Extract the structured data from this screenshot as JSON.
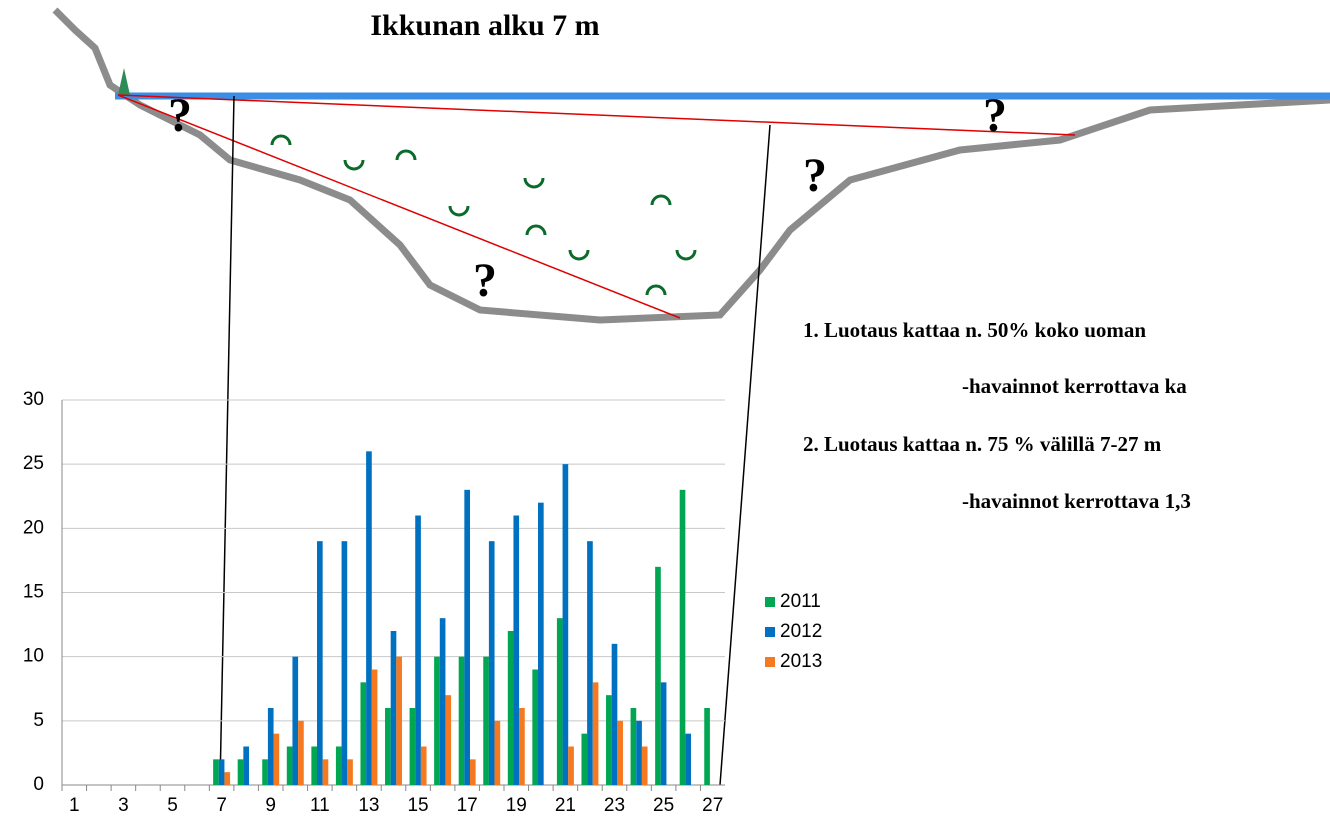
{
  "diagram": {
    "title": "Ikkunan alku 7 m",
    "question_marks": [
      "?",
      "?",
      "?",
      "?"
    ],
    "notes": [
      "1. Luotaus kattaa n. 50% koko uoman",
      "-havainnot kerrottava ka",
      "2. Luotaus kattaa n. 75 % välillä 7-27 m",
      "-havainnot kerrottava 1,3"
    ]
  },
  "chart_data": {
    "type": "bar",
    "categories": [
      "1",
      null,
      "3",
      null,
      "5",
      null,
      "7",
      null,
      "9",
      null,
      "11",
      null,
      "13",
      null,
      "15",
      null,
      "17",
      null,
      "19",
      null,
      "21",
      null,
      "23",
      null,
      "25",
      null,
      "27"
    ],
    "series": [
      {
        "name": "2011",
        "color": "#00a651",
        "values": [
          0,
          0,
          0,
          0,
          0,
          0,
          2,
          2,
          2,
          3,
          3,
          3,
          8,
          6,
          6,
          10,
          10,
          10,
          12,
          9,
          13,
          4,
          7,
          6,
          17,
          23,
          6
        ]
      },
      {
        "name": "2012",
        "color": "#0070c0",
        "values": [
          0,
          0,
          0,
          0,
          0,
          0,
          2,
          3,
          6,
          10,
          19,
          19,
          26,
          12,
          21,
          13,
          23,
          19,
          21,
          22,
          25,
          19,
          11,
          5,
          8,
          4,
          0
        ]
      },
      {
        "name": "2013",
        "color": "#f47920",
        "values": [
          0,
          0,
          0,
          0,
          0,
          0,
          1,
          0,
          4,
          5,
          2,
          2,
          9,
          10,
          3,
          7,
          2,
          5,
          6,
          0,
          3,
          8,
          5,
          3,
          0,
          0,
          0
        ]
      }
    ],
    "ylim": [
      0,
      30
    ],
    "yticks": [
      0,
      5,
      10,
      15,
      20,
      25,
      30
    ],
    "grid": true,
    "legend": "right"
  }
}
